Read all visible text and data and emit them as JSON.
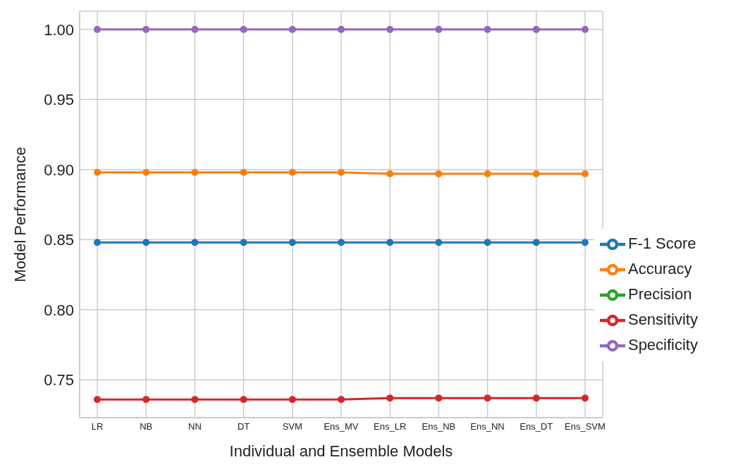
{
  "chart_data": {
    "type": "line",
    "xlabel": "Individual and Ensemble Models",
    "ylabel": "Model Performance",
    "categories": [
      "LR",
      "NB",
      "NN",
      "DT",
      "SVM",
      "Ens_MV",
      "Ens_LR",
      "Ens_NB",
      "Ens_NN",
      "Ens_DT",
      "Ens_SVM"
    ],
    "series": [
      {
        "name": "F-1 Score",
        "color": "#1f77b4",
        "values": [
          0.848,
          0.848,
          0.848,
          0.848,
          0.848,
          0.848,
          0.848,
          0.848,
          0.848,
          0.848,
          0.848
        ]
      },
      {
        "name": "Accuracy",
        "color": "#ff7f0e",
        "values": [
          0.898,
          0.898,
          0.898,
          0.898,
          0.898,
          0.898,
          0.897,
          0.897,
          0.897,
          0.897,
          0.897
        ]
      },
      {
        "name": "Precision",
        "color": "#2ca02c",
        "values": [
          null,
          null,
          null,
          null,
          null,
          null,
          null,
          null,
          null,
          null,
          null
        ]
      },
      {
        "name": "Sensitivity",
        "color": "#d62728",
        "values": [
          0.736,
          0.736,
          0.736,
          0.736,
          0.736,
          0.736,
          0.737,
          0.737,
          0.737,
          0.737,
          0.737
        ]
      },
      {
        "name": "Specificity",
        "color": "#9467bd",
        "values": [
          1.0,
          1.0,
          1.0,
          1.0,
          1.0,
          1.0,
          1.0,
          1.0,
          1.0,
          1.0,
          1.0
        ]
      }
    ],
    "ylim": [
      0.723,
      1.013
    ],
    "yticks": [
      {
        "value": 0.75,
        "label": "0.75"
      },
      {
        "value": 0.8,
        "label": "0.80"
      },
      {
        "value": 0.85,
        "label": "0.85"
      },
      {
        "value": 0.9,
        "label": "0.90"
      },
      {
        "value": 0.95,
        "label": "0.95"
      },
      {
        "value": 1.0,
        "label": "1.00"
      }
    ],
    "grid": true,
    "legend": "bottom right",
    "marker": "circle",
    "line_style": "solid"
  }
}
